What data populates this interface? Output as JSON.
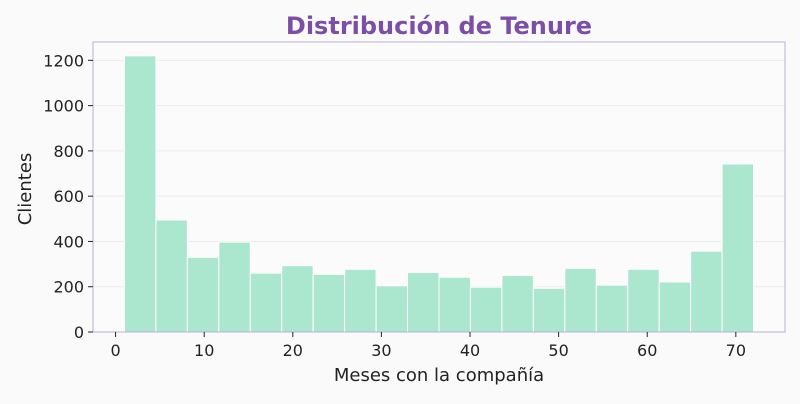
{
  "chart_data": {
    "type": "bar",
    "title": "Distribución de Tenure",
    "xlabel": "Meses con la compañía",
    "ylabel": "Clientes",
    "bin_edges": [
      1,
      4.55,
      8.1,
      11.65,
      15.2,
      18.75,
      22.3,
      25.85,
      29.4,
      32.95,
      36.5,
      40.05,
      43.6,
      47.15,
      50.7,
      54.25,
      57.8,
      61.35,
      64.9,
      68.45,
      72
    ],
    "values": [
      1220,
      495,
      330,
      397,
      260,
      293,
      255,
      277,
      204,
      263,
      242,
      198,
      250,
      193,
      281,
      207,
      277,
      221,
      357,
      742
    ],
    "xlim": [
      -2.55,
      75.55
    ],
    "ylim": [
      0,
      1281
    ],
    "xticks": [
      0,
      10,
      20,
      30,
      40,
      50,
      60,
      70
    ],
    "yticks": [
      0,
      200,
      400,
      600,
      800,
      1000,
      1200
    ],
    "grid": true,
    "colors": {
      "bar_fill": "#abe6cf",
      "bar_stroke": "#ffffff",
      "title": "#7b4fa6",
      "plot_border": "#b7b0d8",
      "grid": "#ececec",
      "background": "#fafafa",
      "text": "#222222"
    }
  }
}
